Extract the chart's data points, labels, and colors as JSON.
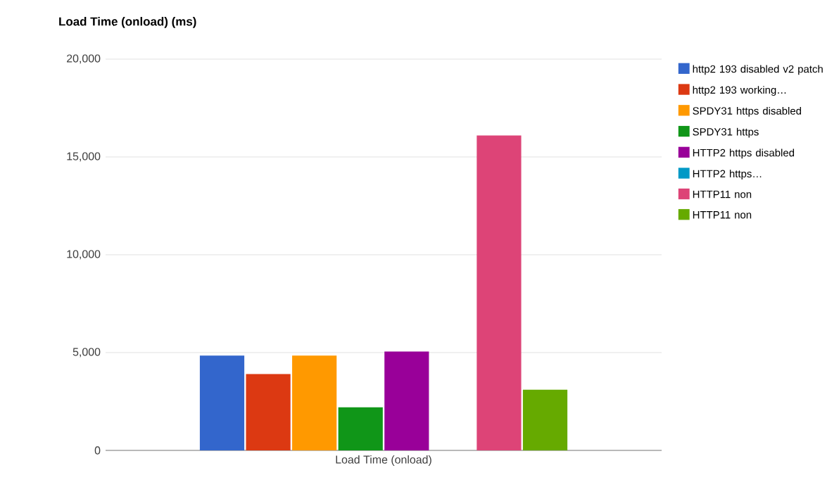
{
  "chart_data": {
    "type": "bar",
    "title": "Load Time (onload) (ms)",
    "categories": [
      "Load Time (onload)"
    ],
    "series": [
      {
        "name": "http2 193 disabled v2 patch",
        "color": "#3366cc",
        "values": [
          4850
        ]
      },
      {
        "name": "http2 193 working…",
        "color": "#dc3912",
        "values": [
          3900
        ]
      },
      {
        "name": "SPDY31 https disabled",
        "color": "#ff9900",
        "values": [
          4850
        ]
      },
      {
        "name": "SPDY31 https",
        "color": "#109618",
        "values": [
          2200
        ]
      },
      {
        "name": "HTTP2 https disabled",
        "color": "#990099",
        "values": [
          5050
        ]
      },
      {
        "name": "HTTP2 https…",
        "color": "#0099c6",
        "values": [
          null
        ]
      },
      {
        "name": "HTTP11 non",
        "color": "#dd4477",
        "values": [
          16100
        ]
      },
      {
        "name": "HTTP11 non",
        "color": "#66aa00",
        "values": [
          3100
        ]
      }
    ],
    "ylim": [
      0,
      20000
    ],
    "yticks": [
      {
        "value": 0,
        "label": "0"
      },
      {
        "value": 5000,
        "label": "5,000"
      },
      {
        "value": 10000,
        "label": "10,000"
      },
      {
        "value": 15000,
        "label": "15,000"
      },
      {
        "value": 20000,
        "label": "20,000"
      }
    ],
    "grid": "y",
    "legend": "right"
  }
}
